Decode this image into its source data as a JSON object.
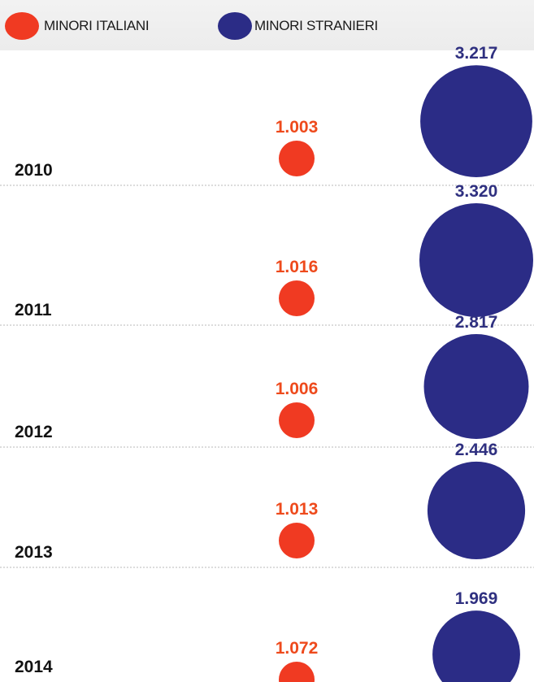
{
  "legend": {
    "italiani_label": "MINORI ITALIANI",
    "stranieri_label": "MINORI STRANIERI"
  },
  "colors": {
    "italiani": "#f03a22",
    "italiani_label": "#ee4a1c",
    "stranieri": "#2b2c86",
    "stranieri_label": "#2f3080",
    "divider": "#b9b9b9"
  },
  "chart_data": {
    "type": "bubble",
    "categories": [
      "2010",
      "2011",
      "2012",
      "2013",
      "2014"
    ],
    "series": [
      {
        "name": "MINORI ITALIANI",
        "values": [
          1003,
          1016,
          1006,
          1013,
          1072
        ],
        "labels": [
          "1.003",
          "1.016",
          "1.006",
          "1.013",
          "1.072"
        ]
      },
      {
        "name": "MINORI STRANIERI",
        "values": [
          3217,
          3320,
          2817,
          2446,
          1969
        ],
        "labels": [
          "3.217",
          "3.320",
          "2.817",
          "2.446",
          "1.969"
        ]
      }
    ]
  }
}
